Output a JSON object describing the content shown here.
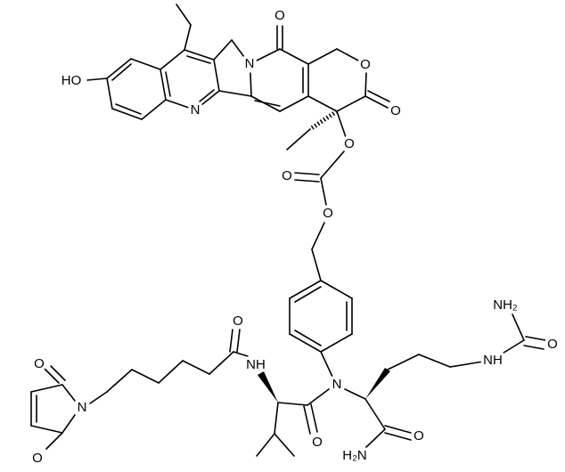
{
  "labels": [
    "HO",
    "N",
    "N",
    "O",
    "O",
    "O",
    "O",
    "O",
    "O",
    "N",
    "NH₂",
    "O",
    "NH",
    "H₂N",
    "O",
    "O",
    "NH",
    "O",
    "N",
    "O",
    "O"
  ]
}
